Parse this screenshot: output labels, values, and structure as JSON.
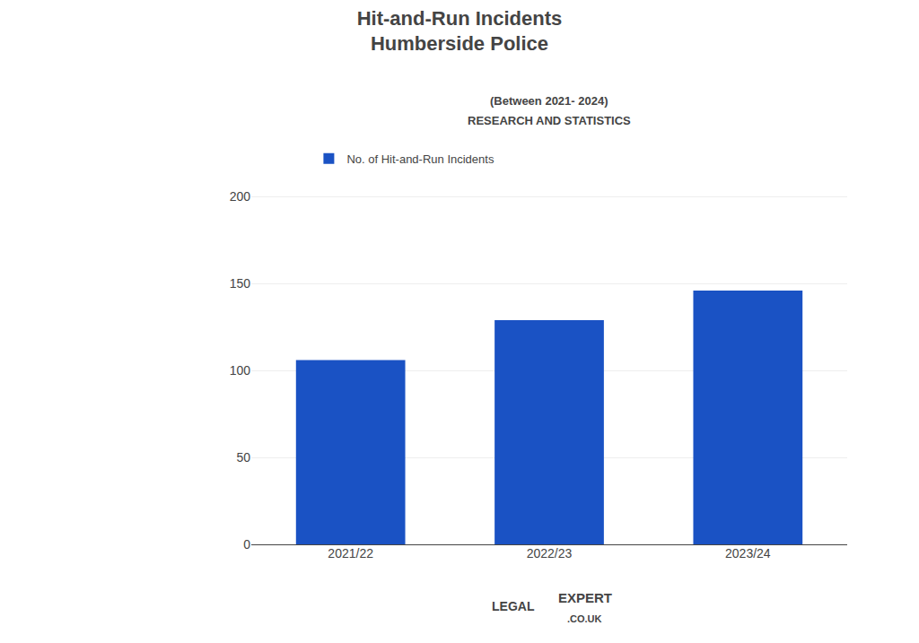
{
  "chart_data": {
    "type": "bar",
    "title": [
      "Hit-and-Run Incidents",
      "Humberside Police"
    ],
    "subtitle": [
      "(Between 2021- 2024)",
      "RESEARCH AND STATISTICS"
    ],
    "categories": [
      "2021/22",
      "2022/23",
      "2023/24"
    ],
    "series": [
      {
        "name": "No. of Hit-and-Run Incidents",
        "color": "#1a52c4",
        "values": [
          106,
          129,
          146
        ]
      }
    ],
    "ylim": [
      0,
      210
    ],
    "yticks": [
      0,
      50,
      100,
      150,
      200
    ],
    "grid": true,
    "legend": "top",
    "annotations": [
      "LEGAL",
      "EXPERT",
      ".CO.UK"
    ]
  }
}
